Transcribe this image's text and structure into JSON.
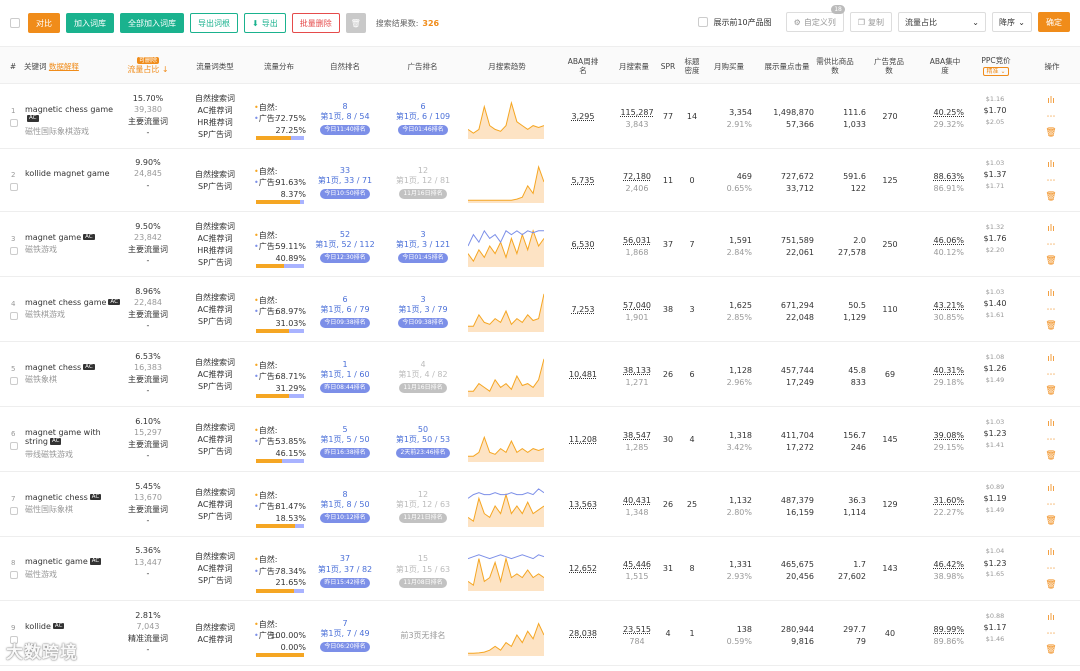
{
  "toolbar": {
    "compare": "对比",
    "add_to_lib": "加入词库",
    "add_all": "全部加入词库",
    "export_root": "导出词根",
    "export": "导出",
    "batch_delete": "批量删除",
    "search_label": "搜索结果数:",
    "search_count": "326",
    "show_top10": "展示前10产品图",
    "custom_cols": "自定义列",
    "custom_badge": "18",
    "copy": "复制",
    "sort_field": "流量占比",
    "sort_order": "降序",
    "confirm": "确定"
  },
  "header": {
    "idx": "#",
    "keyword": "关键词",
    "data_explain": "数据解释",
    "share_tag": "可删除",
    "share": "流量占比",
    "kw_type": "流量词类型",
    "traffic_dist": "流量分布",
    "organic_rank": "自然排名",
    "ad_rank": "广告排名",
    "monthly_trend": "月搜索趋势",
    "aba_rank": "ABA周排名",
    "monthly_search": "月搜索量",
    "spr": "SPR",
    "title_density": "标题密度",
    "monthly_buy": "月购买量",
    "impressions": "展示量点击量",
    "supply_demand": "需供比商品数",
    "ad_products": "广告竞品数",
    "aba_conc": "ABA集中度",
    "ppc": "PPC竞价",
    "ppc_tag": "精准",
    "ops": "操作"
  },
  "watermark": "大数跨境",
  "rows": [
    {
      "idx": "1",
      "kw": "magnetic chess game",
      "ac": true,
      "cn": "磁性国际象棋游戏",
      "share": "15.70%",
      "share2": "39,380",
      "main": "主要流量词",
      "dash": "-",
      "types": [
        "自然搜索词",
        "AC推荐词",
        "HR推荐词",
        "SP广告词"
      ],
      "nat": "72.75%",
      "ad": "27.25%",
      "nat_v": 72.75,
      "org1": "8",
      "org2": "第1页, 8 / 54",
      "org3": "今日11:40排名",
      "org_gray": false,
      "ad1": "6",
      "ad2": "第1页, 6 / 109",
      "ad3": "今日01:46排名",
      "ad_gray": false,
      "trend": [
        0.2,
        0.1,
        0.2,
        0.8,
        0.3,
        0.2,
        0.15,
        0.3,
        0.9,
        0.4,
        0.3,
        0.2,
        0.3,
        0.25,
        0.3
      ],
      "trend2": null,
      "aba": "3,295",
      "ms1": "115,287",
      "ms2": "3,843",
      "spr": "77",
      "td": "14",
      "mb1": "3,354",
      "mb2": "2.91%",
      "imp1": "1,498,870",
      "imp2": "57,366",
      "sd1": "111.6",
      "sd2": "1,033",
      "adp": "270",
      "conc1": "40.25%",
      "conc2": "29.32%",
      "ppc1": "$1.16",
      "ppc2": "$1.70",
      "ppc3": "$2.05"
    },
    {
      "idx": "2",
      "kw": "kollide magnet game",
      "ac": false,
      "cn": "",
      "share": "9.90%",
      "share2": "24,845",
      "main": "",
      "dash": "-",
      "types": [
        "自然搜索词",
        "SP广告词"
      ],
      "nat": "91.63%",
      "ad": "8.37%",
      "nat_v": 91.63,
      "org1": "33",
      "org2": "第1页, 33 / 71",
      "org3": "今日10:50排名",
      "org_gray": false,
      "ad1": "12",
      "ad2": "第1页, 12 / 81",
      "ad3": "11月16日排名",
      "ad_gray": true,
      "trend": [
        0.02,
        0.02,
        0.02,
        0.02,
        0.02,
        0.02,
        0.02,
        0.02,
        0.02,
        0.05,
        0.1,
        0.4,
        0.2,
        0.9,
        0.5
      ],
      "trend2": null,
      "aba": "5,735",
      "ms1": "72,180",
      "ms2": "2,406",
      "spr": "11",
      "td": "0",
      "mb1": "469",
      "mb2": "0.65%",
      "imp1": "727,672",
      "imp2": "33,712",
      "sd1": "591.6",
      "sd2": "122",
      "adp": "125",
      "conc1": "88.63%",
      "conc2": "86.91%",
      "ppc1": "$1.03",
      "ppc2": "$1.37",
      "ppc3": "$1.71"
    },
    {
      "idx": "3",
      "kw": "magnet game",
      "ac": true,
      "cn": "磁铁游戏",
      "share": "9.50%",
      "share2": "23,842",
      "main": "主要流量词",
      "dash": "-",
      "types": [
        "自然搜索词",
        "AC推荐词",
        "HR推荐词",
        "SP广告词"
      ],
      "nat": "59.11%",
      "ad": "40.89%",
      "nat_v": 59.11,
      "org1": "52",
      "org2": "第1页, 52 / 112",
      "org3": "今日12:30排名",
      "org_gray": false,
      "ad1": "3",
      "ad2": "第1页, 3 / 121",
      "ad3": "今日01:45排名",
      "ad_gray": false,
      "trend": [
        0.3,
        0.1,
        0.4,
        0.2,
        0.5,
        0.3,
        0.6,
        0.2,
        0.7,
        0.3,
        0.8,
        0.4,
        0.9,
        0.5,
        0.7
      ],
      "trend2": [
        0.5,
        0.8,
        0.6,
        0.9,
        0.7,
        0.8,
        0.6,
        0.9,
        0.8,
        0.9,
        0.8,
        0.9,
        0.85,
        0.9,
        0.9
      ],
      "aba": "6,530",
      "ms1": "56,031",
      "ms2": "1,868",
      "spr": "37",
      "td": "7",
      "mb1": "1,591",
      "mb2": "2.84%",
      "imp1": "751,589",
      "imp2": "22,061",
      "sd1": "2.0",
      "sd2": "27,578",
      "adp": "250",
      "conc1": "46.06%",
      "conc2": "40.12%",
      "ppc1": "$1.32",
      "ppc2": "$1.76",
      "ppc3": "$2.20"
    },
    {
      "idx": "4",
      "kw": "magnet chess game",
      "ac": true,
      "cn": "磁铁棋游戏",
      "share": "8.96%",
      "share2": "22,484",
      "main": "主要流量词",
      "dash": "-",
      "types": [
        "自然搜索词",
        "AC推荐词",
        "SP广告词"
      ],
      "nat": "68.97%",
      "ad": "31.03%",
      "nat_v": 68.97,
      "org1": "6",
      "org2": "第1页, 6 / 79",
      "org3": "今日09:38排名",
      "org_gray": false,
      "ad1": "3",
      "ad2": "第1页, 3 / 79",
      "ad3": "今日09:38排名",
      "ad_gray": false,
      "trend": [
        0.1,
        0.1,
        0.4,
        0.2,
        0.15,
        0.3,
        0.2,
        0.5,
        0.15,
        0.3,
        0.2,
        0.4,
        0.25,
        0.3,
        0.95
      ],
      "trend2": null,
      "aba": "7,253",
      "ms1": "57,040",
      "ms2": "1,901",
      "spr": "38",
      "td": "3",
      "mb1": "1,625",
      "mb2": "2.85%",
      "imp1": "671,294",
      "imp2": "22,048",
      "sd1": "50.5",
      "sd2": "1,129",
      "adp": "110",
      "conc1": "43.21%",
      "conc2": "30.85%",
      "ppc1": "$1.03",
      "ppc2": "$1.40",
      "ppc3": "$1.61"
    },
    {
      "idx": "5",
      "kw": "magnet chess",
      "ac": true,
      "cn": "磁铁象棋",
      "share": "6.53%",
      "share2": "16,383",
      "main": "主要流量词",
      "dash": "-",
      "types": [
        "自然搜索词",
        "AC推荐词",
        "SP广告词"
      ],
      "nat": "68.71%",
      "ad": "31.29%",
      "nat_v": 68.71,
      "org1": "1",
      "org2": "第1页, 1 / 60",
      "org3": "昨日08:44排名",
      "org_gray": false,
      "ad1": "4",
      "ad2": "第1页, 4 / 82",
      "ad3": "11月16日排名",
      "ad_gray": true,
      "trend": [
        0.1,
        0.1,
        0.3,
        0.2,
        0.1,
        0.4,
        0.2,
        0.3,
        0.15,
        0.5,
        0.25,
        0.3,
        0.2,
        0.4,
        0.95
      ],
      "trend2": null,
      "aba": "10,481",
      "ms1": "38,133",
      "ms2": "1,271",
      "spr": "26",
      "td": "6",
      "mb1": "1,128",
      "mb2": "2.96%",
      "imp1": "457,744",
      "imp2": "17,249",
      "sd1": "45.8",
      "sd2": "833",
      "adp": "69",
      "conc1": "40.31%",
      "conc2": "29.18%",
      "ppc1": "$1.08",
      "ppc2": "$1.26",
      "ppc3": "$1.49"
    },
    {
      "idx": "6",
      "kw": "magnet game with string",
      "ac": true,
      "cn": "带线磁铁游戏",
      "share": "6.10%",
      "share2": "15,297",
      "main": "主要流量词",
      "dash": "-",
      "types": [
        "自然搜索词",
        "AC推荐词",
        "SP广告词"
      ],
      "nat": "53.85%",
      "ad": "46.15%",
      "nat_v": 53.85,
      "org1": "5",
      "org2": "第1页, 5 / 50",
      "org3": "昨日16:38排名",
      "org_gray": false,
      "ad1": "50",
      "ad2": "第1页, 50 / 53",
      "ad3": "2天前23:46排名",
      "ad_gray": false,
      "trend": [
        0.1,
        0.1,
        0.2,
        0.6,
        0.2,
        0.15,
        0.3,
        0.2,
        0.5,
        0.2,
        0.3,
        0.2,
        0.3,
        0.25,
        0.3
      ],
      "trend2": null,
      "aba": "11,208",
      "ms1": "38,547",
      "ms2": "1,285",
      "spr": "30",
      "td": "4",
      "mb1": "1,318",
      "mb2": "3.42%",
      "imp1": "411,704",
      "imp2": "17,272",
      "sd1": "156.7",
      "sd2": "246",
      "adp": "145",
      "conc1": "39.08%",
      "conc2": "29.15%",
      "ppc1": "$1.03",
      "ppc2": "$1.23",
      "ppc3": "$1.41"
    },
    {
      "idx": "7",
      "kw": "magnetic chess",
      "ac": true,
      "cn": "磁性国际象棋",
      "share": "5.45%",
      "share2": "13,670",
      "main": "主要流量词",
      "dash": "-",
      "types": [
        "自然搜索词",
        "AC推荐词",
        "SP广告词"
      ],
      "nat": "81.47%",
      "ad": "18.53%",
      "nat_v": 81.47,
      "org1": "8",
      "org2": "第1页, 8 / 50",
      "org3": "今日10:12排名",
      "org_gray": false,
      "ad1": "12",
      "ad2": "第1页, 12 / 63",
      "ad3": "11月21日排名",
      "ad_gray": true,
      "trend": [
        0.2,
        0.1,
        0.7,
        0.3,
        0.2,
        0.5,
        0.3,
        0.8,
        0.3,
        0.5,
        0.3,
        0.6,
        0.3,
        0.4,
        0.5
      ],
      "trend2": [
        0.7,
        0.8,
        0.85,
        0.8,
        0.8,
        0.85,
        0.8,
        0.8,
        0.85,
        0.8,
        0.8,
        0.85,
        0.8,
        0.95,
        0.85
      ],
      "aba": "13,563",
      "ms1": "40,431",
      "ms2": "1,348",
      "spr": "26",
      "td": "25",
      "mb1": "1,132",
      "mb2": "2.80%",
      "imp1": "487,379",
      "imp2": "16,159",
      "sd1": "36.3",
      "sd2": "1,114",
      "adp": "129",
      "conc1": "31.60%",
      "conc2": "22.27%",
      "ppc1": "$0.89",
      "ppc2": "$1.19",
      "ppc3": "$1.49"
    },
    {
      "idx": "8",
      "kw": "magnetic game",
      "ac": true,
      "cn": "磁性游戏",
      "share": "5.36%",
      "share2": "13,447",
      "main": "",
      "dash": "-",
      "types": [
        "自然搜索词",
        "AC推荐词",
        "SP广告词"
      ],
      "nat": "78.34%",
      "ad": "21.65%",
      "nat_v": 78.34,
      "org1": "37",
      "org2": "第1页, 37 / 82",
      "org3": "昨日15:42排名",
      "org_gray": false,
      "ad1": "15",
      "ad2": "第1页, 15 / 63",
      "ad3": "11月08日排名",
      "ad_gray": true,
      "trend": [
        0.2,
        0.1,
        0.8,
        0.2,
        0.3,
        0.7,
        0.2,
        0.8,
        0.3,
        0.4,
        0.3,
        0.5,
        0.3,
        0.4,
        0.3
      ],
      "trend2": [
        0.8,
        0.85,
        0.9,
        0.85,
        0.8,
        0.85,
        0.9,
        0.85,
        0.8,
        0.85,
        0.9,
        0.85,
        0.8,
        0.9,
        0.85
      ],
      "aba": "12,652",
      "ms1": "45,446",
      "ms2": "1,515",
      "spr": "31",
      "td": "8",
      "mb1": "1,331",
      "mb2": "2.93%",
      "imp1": "465,675",
      "imp2": "20,456",
      "sd1": "1.7",
      "sd2": "27,602",
      "adp": "143",
      "conc1": "46.42%",
      "conc2": "38.98%",
      "ppc1": "$1.04",
      "ppc2": "$1.23",
      "ppc3": "$1.65"
    },
    {
      "idx": "9",
      "kw": "kollide",
      "ac": true,
      "cn": "",
      "share": "2.81%",
      "share2": "7,043",
      "main": "精准流量词",
      "dash": "-",
      "types": [
        "自然搜索词",
        "AC推荐词"
      ],
      "nat": "100.00%",
      "ad": "0.00%",
      "nat_v": 100,
      "org1": "7",
      "org2": "第1页, 7 / 49",
      "org3": "今日06:20排名",
      "org_gray": false,
      "ad1": "",
      "ad2": "前3页无排名",
      "ad3": "",
      "ad_gray": true,
      "trend": [
        0.02,
        0.02,
        0.03,
        0.05,
        0.1,
        0.2,
        0.1,
        0.3,
        0.2,
        0.5,
        0.3,
        0.6,
        0.4,
        0.8,
        0.5
      ],
      "trend2": null,
      "aba": "28,038",
      "ms1": "23,515",
      "ms2": "784",
      "spr": "4",
      "td": "1",
      "mb1": "138",
      "mb2": "0.59%",
      "imp1": "280,944",
      "imp2": "9,816",
      "sd1": "297.7",
      "sd2": "79",
      "adp": "40",
      "conc1": "89.99%",
      "conc2": "89.86%",
      "ppc1": "$0.88",
      "ppc2": "$1.17",
      "ppc3": "$1.46"
    }
  ]
}
